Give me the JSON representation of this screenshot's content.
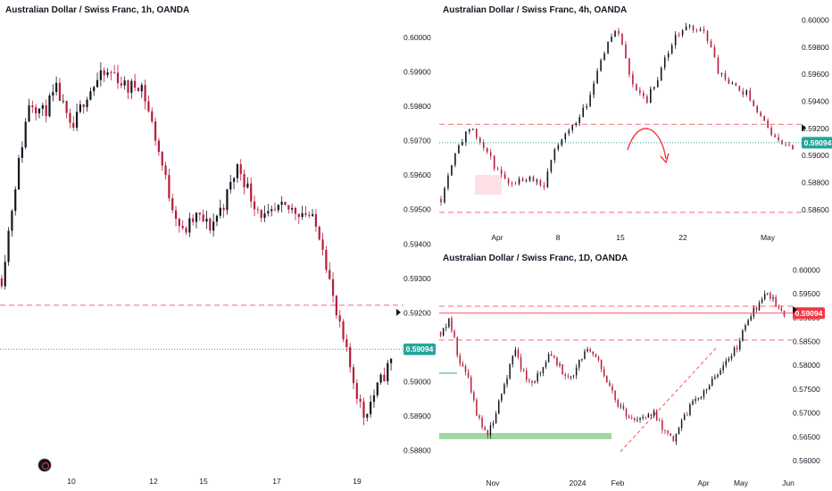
{
  "colors": {
    "up": "#131722",
    "down": "#b71c3c",
    "price_line": "#26a69a",
    "level": "#f7525f",
    "support_zone": "#8fd18f",
    "arrow": "#f23645"
  },
  "logo_icon": "tradingview-logo-icon",
  "chart_data": [
    {
      "id": "h1",
      "type": "candlestick",
      "title": "Australian Dollar / Swiss Franc, 1h, OANDA",
      "x_tick_labels": [
        "10",
        "12",
        "15",
        "17",
        "19"
      ],
      "y_ticks": [
        "0.60000",
        "0.59900",
        "0.59800",
        "0.59700",
        "0.59600",
        "0.59500",
        "0.59400",
        "0.59300",
        "0.59200",
        "0.59100",
        "0.59000",
        "0.58900",
        "0.58800"
      ],
      "ylim": [
        0.5876,
        0.6007
      ],
      "current_price": "0.59094",
      "levels": [
        0.59222
      ],
      "path": [
        0.593,
        0.5958,
        0.5982,
        0.5978,
        0.5985,
        0.5972,
        0.5983,
        0.5988,
        0.599,
        0.5985,
        0.5987,
        0.5972,
        0.5955,
        0.5943,
        0.5948,
        0.5945,
        0.5952,
        0.5963,
        0.5953,
        0.5947,
        0.595,
        0.595,
        0.5949,
        0.5942,
        0.592,
        0.5905,
        0.589,
        0.5898,
        0.5906
      ]
    },
    {
      "id": "h4",
      "type": "candlestick",
      "title": "Australian Dollar / Swiss Franc, 4h, OANDA",
      "x_tick_labels": [
        "Apr",
        "8",
        "15",
        "22",
        "May"
      ],
      "y_ticks": [
        "0.60000",
        "0.59800",
        "0.59600",
        "0.59400",
        "0.59200",
        "0.59000",
        "0.58800",
        "0.58600"
      ],
      "ylim": [
        0.585,
        0.6003
      ],
      "current_price": "0.59094",
      "levels": [
        0.5923,
        0.5858
      ],
      "path": [
        0.5868,
        0.5905,
        0.592,
        0.5905,
        0.5885,
        0.588,
        0.5885,
        0.5878,
        0.591,
        0.5922,
        0.594,
        0.5975,
        0.5995,
        0.5955,
        0.594,
        0.5963,
        0.5988,
        0.5995,
        0.5992,
        0.596,
        0.595,
        0.5945,
        0.5925,
        0.591,
        0.5905
      ]
    },
    {
      "id": "d1",
      "type": "candlestick",
      "title": "Australian Dollar / Swiss Franc, 1D, OANDA",
      "x_tick_labels": [
        "Nov",
        "2024",
        "Feb",
        "Apr",
        "May",
        "Jun"
      ],
      "y_ticks": [
        "0.60000",
        "0.59500",
        "0.59000",
        "0.58500",
        "0.58000",
        "0.57500",
        "0.57000",
        "0.56500",
        "0.56000"
      ],
      "ylim": [
        0.5585,
        0.6012
      ],
      "current_price": "0.59094",
      "levels": [
        0.5924,
        0.5853
      ],
      "path": [
        0.587,
        0.5895,
        0.581,
        0.577,
        0.569,
        0.565,
        0.57,
        0.577,
        0.583,
        0.578,
        0.576,
        0.58,
        0.5825,
        0.579,
        0.577,
        0.581,
        0.5835,
        0.581,
        0.576,
        0.572,
        0.57,
        0.569,
        0.5685,
        0.57,
        0.566,
        0.564,
        0.568,
        0.572,
        0.574,
        0.576,
        0.578,
        0.582,
        0.584,
        0.59,
        0.592,
        0.596,
        0.593,
        0.5905
      ]
    }
  ]
}
